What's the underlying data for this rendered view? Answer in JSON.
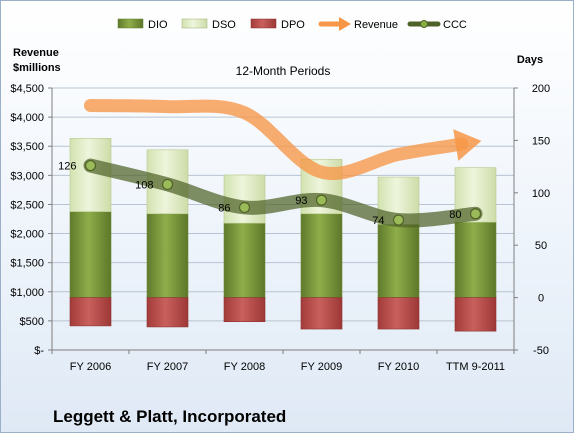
{
  "company": "Leggett & Platt, Incorporated",
  "chart_data": {
    "type": "bar",
    "subtitle": "12-Month Periods",
    "y_left_label_lines": [
      "Revenue",
      "$millions"
    ],
    "y_right_label": "Days",
    "categories": [
      "FY 2006",
      "FY 2007",
      "FY 2008",
      "FY 2009",
      "FY 2010",
      "TTM 9-2011"
    ],
    "y_left": {
      "min": 0,
      "max": 4500,
      "step": 500,
      "ticks": [
        "$-",
        "$500",
        "$1,000",
        "$1,500",
        "$2,000",
        "$2,500",
        "$3,000",
        "$3,500",
        "$4,000",
        "$4,500"
      ]
    },
    "y_right": {
      "min": -50,
      "max": 200,
      "step": 50,
      "ticks": [
        "-50",
        "0",
        "50",
        "100",
        "150",
        "200"
      ]
    },
    "grid": "horizontal",
    "legend_position": "top",
    "series": [
      {
        "name": "DIO",
        "type": "stacked-bar",
        "axis": "right",
        "color": "#77933c",
        "values": [
          82,
          80,
          71,
          80,
          70,
          72
        ]
      },
      {
        "name": "DSO",
        "type": "stacked-bar",
        "axis": "right",
        "color": "#d7e4bd",
        "values": [
          70,
          61,
          46,
          52,
          45,
          52
        ]
      },
      {
        "name": "DPO",
        "type": "stacked-bar",
        "axis": "right",
        "color": "#c0504d",
        "values": [
          -27,
          -28,
          -23,
          -30,
          -30,
          -32
        ]
      },
      {
        "name": "Revenue",
        "type": "line",
        "axis": "left",
        "color": "#f79646",
        "values": [
          4200,
          4180,
          4075,
          3055,
          3360,
          3575
        ]
      },
      {
        "name": "CCC",
        "type": "line",
        "axis": "right",
        "color": "#4f6228",
        "values": [
          126,
          108,
          86,
          93,
          74,
          80
        ]
      }
    ],
    "data_labels": [
      "126",
      "108",
      "86",
      "93",
      "74",
      "80"
    ]
  }
}
